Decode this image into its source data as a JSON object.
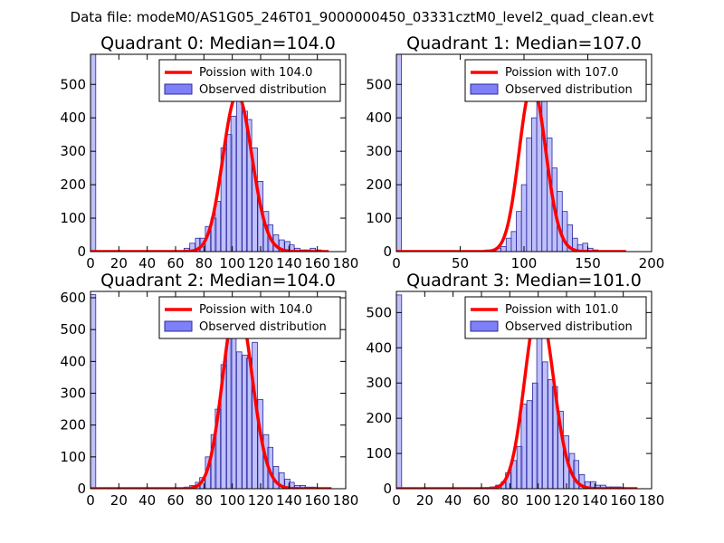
{
  "suptitle": "Data file: modeM0/AS1G05_246T01_9000000450_03331cztM0_level2_quad_clean.evt",
  "colors": {
    "bar_fill": "#7f7ff7",
    "bar_edge": "#2b2b9e",
    "curve": "#ff0000",
    "axis": "#000000"
  },
  "chart_data": [
    {
      "type": "bar",
      "title": "Quadrant 0: Median=104.0",
      "legend": {
        "curve_label": "Poission with 104.0",
        "bar_label": "Observed distribution",
        "loc": "upper-right"
      },
      "xlim": [
        0,
        180
      ],
      "ylim": [
        0,
        590
      ],
      "xticks": [
        0,
        20,
        40,
        60,
        80,
        100,
        120,
        140,
        160,
        180
      ],
      "yticks": [
        0,
        100,
        200,
        300,
        400,
        500
      ],
      "xtick_labels": [
        "0",
        "20",
        "40",
        "60",
        "80",
        "100",
        "120",
        "140",
        "160",
        "180"
      ],
      "ytick_labels": [
        "0",
        "100",
        "200",
        "300",
        "400",
        "500"
      ],
      "bin_width": 3.7,
      "bins": [
        [
          0,
          590
        ],
        [
          66,
          10
        ],
        [
          70,
          25
        ],
        [
          74,
          40
        ],
        [
          77,
          40
        ],
        [
          81,
          75
        ],
        [
          85,
          100
        ],
        [
          88,
          150
        ],
        [
          92,
          310
        ],
        [
          96,
          350
        ],
        [
          99,
          405
        ],
        [
          103,
          470
        ],
        [
          107,
          420
        ],
        [
          110,
          395
        ],
        [
          114,
          310
        ],
        [
          118,
          210
        ],
        [
          122,
          120
        ],
        [
          125,
          80
        ],
        [
          129,
          50
        ],
        [
          133,
          35
        ],
        [
          137,
          30
        ],
        [
          140,
          20
        ],
        [
          144,
          10
        ],
        [
          148,
          5
        ],
        [
          151,
          5
        ],
        [
          155,
          10
        ],
        [
          159,
          5
        ],
        [
          163,
          3
        ]
      ],
      "poisson_mean": 104.0,
      "poisson_scale": 470,
      "poisson_xrange": [
        0,
        168
      ]
    },
    {
      "type": "bar",
      "title": "Quadrant 1: Median=107.0",
      "legend": {
        "curve_label": "Poission with 107.0",
        "bar_label": "Observed distribution",
        "loc": "upper-right"
      },
      "xlim": [
        0,
        200
      ],
      "ylim": [
        0,
        590
      ],
      "xticks": [
        0,
        50,
        100,
        150,
        200
      ],
      "yticks": [
        0,
        100,
        200,
        300,
        400,
        500
      ],
      "xtick_labels": [
        "0",
        "50",
        "100",
        "150",
        "200"
      ],
      "ytick_labels": [
        "0",
        "100",
        "200",
        "300",
        "400",
        "500"
      ],
      "bin_width": 4,
      "bins": [
        [
          0,
          590
        ],
        [
          70,
          5
        ],
        [
          74,
          5
        ],
        [
          78,
          10
        ],
        [
          82,
          15
        ],
        [
          86,
          40
        ],
        [
          90,
          60
        ],
        [
          94,
          120
        ],
        [
          98,
          200
        ],
        [
          102,
          340
        ],
        [
          106,
          400
        ],
        [
          110,
          480
        ],
        [
          114,
          470
        ],
        [
          118,
          340
        ],
        [
          122,
          250
        ],
        [
          126,
          180
        ],
        [
          130,
          120
        ],
        [
          134,
          80
        ],
        [
          138,
          40
        ],
        [
          142,
          20
        ],
        [
          146,
          25
        ],
        [
          150,
          10
        ],
        [
          154,
          5
        ],
        [
          158,
          3
        ]
      ],
      "poisson_mean": 107.0,
      "poisson_scale": 500,
      "poisson_xrange": [
        0,
        180
      ]
    },
    {
      "type": "bar",
      "title": "Quadrant 2: Median=104.0",
      "legend": {
        "curve_label": "Poission with 104.0",
        "bar_label": "Observed distribution",
        "loc": "upper-right"
      },
      "xlim": [
        0,
        180
      ],
      "ylim": [
        0,
        620
      ],
      "xticks": [
        0,
        20,
        40,
        60,
        80,
        100,
        120,
        140,
        160,
        180
      ],
      "yticks": [
        0,
        100,
        200,
        300,
        400,
        500,
        600
      ],
      "xtick_labels": [
        "0",
        "20",
        "40",
        "60",
        "80",
        "100",
        "120",
        "140",
        "160",
        "180"
      ],
      "ytick_labels": [
        "0",
        "100",
        "200",
        "300",
        "400",
        "500",
        "600"
      ],
      "bin_width": 3.7,
      "bins": [
        [
          0,
          610
        ],
        [
          66,
          5
        ],
        [
          70,
          10
        ],
        [
          74,
          20
        ],
        [
          77,
          35
        ],
        [
          81,
          100
        ],
        [
          85,
          170
        ],
        [
          88,
          250
        ],
        [
          92,
          390
        ],
        [
          96,
          490
        ],
        [
          99,
          520
        ],
        [
          103,
          430
        ],
        [
          107,
          420
        ],
        [
          110,
          410
        ],
        [
          114,
          460
        ],
        [
          118,
          280
        ],
        [
          122,
          170
        ],
        [
          125,
          130
        ],
        [
          129,
          70
        ],
        [
          133,
          50
        ],
        [
          137,
          30
        ],
        [
          140,
          20
        ],
        [
          144,
          10
        ],
        [
          148,
          10
        ],
        [
          151,
          5
        ],
        [
          155,
          5
        ],
        [
          159,
          3
        ]
      ],
      "poisson_mean": 104.0,
      "poisson_scale": 590,
      "poisson_xrange": [
        0,
        170
      ]
    },
    {
      "type": "bar",
      "title": "Quadrant 3: Median=101.0",
      "legend": {
        "curve_label": "Poission with 101.0",
        "bar_label": "Observed distribution",
        "loc": "upper-right"
      },
      "xlim": [
        0,
        180
      ],
      "ylim": [
        0,
        560
      ],
      "xticks": [
        0,
        20,
        40,
        60,
        80,
        100,
        120,
        140,
        160,
        180
      ],
      "yticks": [
        0,
        100,
        200,
        300,
        400,
        500
      ],
      "xtick_labels": [
        "0",
        "20",
        "40",
        "60",
        "80",
        "100",
        "120",
        "140",
        "160",
        "180"
      ],
      "ytick_labels": [
        "0",
        "100",
        "200",
        "300",
        "400",
        "500"
      ],
      "bin_width": 3.7,
      "bins": [
        [
          0,
          550
        ],
        [
          66,
          5
        ],
        [
          70,
          10
        ],
        [
          74,
          20
        ],
        [
          77,
          45
        ],
        [
          81,
          80
        ],
        [
          85,
          120
        ],
        [
          88,
          240
        ],
        [
          92,
          250
        ],
        [
          96,
          300
        ],
        [
          99,
          430
        ],
        [
          103,
          360
        ],
        [
          107,
          310
        ],
        [
          110,
          290
        ],
        [
          114,
          220
        ],
        [
          118,
          150
        ],
        [
          122,
          100
        ],
        [
          125,
          80
        ],
        [
          129,
          40
        ],
        [
          133,
          20
        ],
        [
          137,
          20
        ],
        [
          140,
          10
        ],
        [
          144,
          10
        ],
        [
          148,
          5
        ],
        [
          151,
          5
        ],
        [
          155,
          5
        ],
        [
          159,
          3
        ]
      ],
      "poisson_mean": 101.0,
      "poisson_scale": 520,
      "poisson_xrange": [
        0,
        170
      ]
    }
  ]
}
